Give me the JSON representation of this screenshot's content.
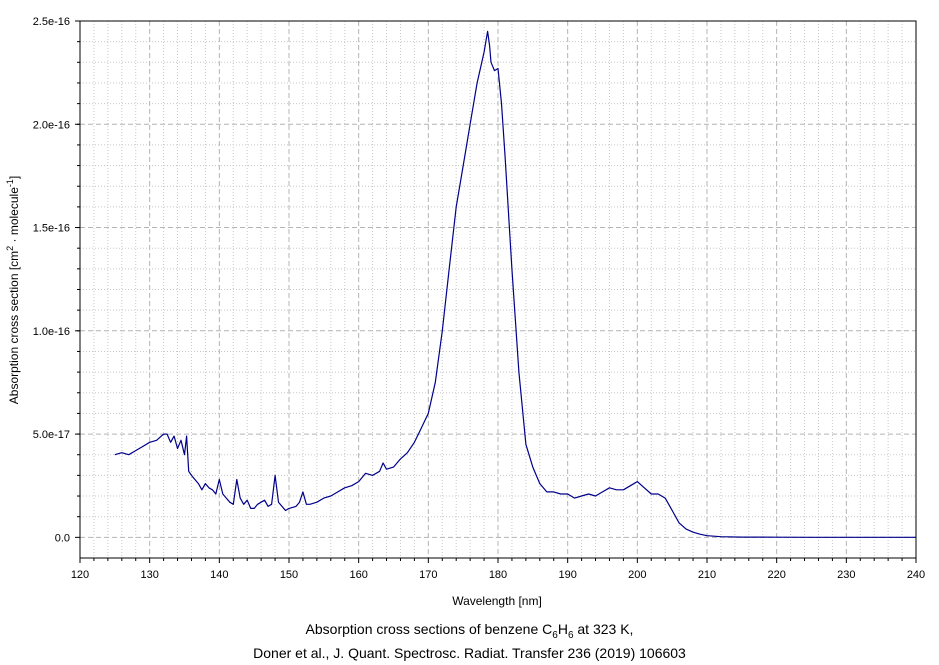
{
  "chart_data": {
    "type": "line",
    "xlabel": "Wavelength [nm]",
    "ylabel": {
      "prefix": "Absorption cross section [cm",
      "sup1": "2",
      "middle": " · molecule",
      "sup2": "-1",
      "suffix": "]"
    },
    "xlim": [
      120,
      240
    ],
    "ylim": [
      -1e-17,
      2.5e-16
    ],
    "x_ticks": [
      120,
      130,
      140,
      150,
      160,
      170,
      180,
      190,
      200,
      210,
      220,
      230,
      240
    ],
    "x_tick_labels": [
      "120",
      "130",
      "140",
      "150",
      "160",
      "170",
      "180",
      "190",
      "200",
      "210",
      "220",
      "230",
      "240"
    ],
    "y_ticks": [
      0,
      5e-17,
      1e-16,
      1.5e-16,
      2e-16,
      2.5e-16
    ],
    "y_tick_labels": [
      "0.0",
      "5.0e-17",
      "1.0e-16",
      "1.5e-16",
      "2.0e-16",
      "2.5e-16"
    ],
    "grid": true,
    "series": [
      {
        "color": "#00008b",
        "x": [
          125,
          126,
          127,
          128,
          129,
          130,
          131,
          132,
          132.5,
          133,
          133.5,
          134,
          134.5,
          135,
          135.3,
          135.6,
          136,
          136.5,
          137,
          137.5,
          138,
          138.5,
          139,
          139.5,
          140,
          140.5,
          141,
          141.5,
          142,
          142.5,
          143,
          143.5,
          144,
          144.5,
          145,
          145.5,
          146,
          146.5,
          147,
          147.5,
          148,
          148.5,
          149,
          149.5,
          150,
          151,
          151.5,
          152,
          152.5,
          153,
          154,
          155,
          156,
          157,
          158,
          159,
          160,
          161,
          162,
          163,
          163.5,
          164,
          165,
          166,
          167,
          168,
          169,
          170,
          171,
          172,
          173,
          174,
          175,
          176,
          177,
          178,
          178.5,
          178.8,
          179,
          179.5,
          180,
          180.5,
          181,
          182,
          183,
          184,
          185,
          186,
          187,
          188,
          189,
          190,
          191,
          192,
          193,
          194,
          195,
          196,
          197,
          198,
          199,
          200,
          201,
          202,
          203,
          204,
          205,
          206,
          207,
          208,
          209,
          210,
          212,
          215,
          220,
          225,
          230,
          235,
          240
        ],
        "y": [
          4e-17,
          4.1e-17,
          4e-17,
          4.2e-17,
          4.4e-17,
          4.6e-17,
          4.7e-17,
          5e-17,
          5e-17,
          4.6e-17,
          4.9e-17,
          4.3e-17,
          4.7e-17,
          4e-17,
          4.9e-17,
          3.2e-17,
          3e-17,
          2.8e-17,
          2.6e-17,
          2.3e-17,
          2.6e-17,
          2.4e-17,
          2.3e-17,
          2.1e-17,
          2.8e-17,
          2.1e-17,
          1.9e-17,
          1.7e-17,
          1.6e-17,
          2.8e-17,
          1.9e-17,
          1.6e-17,
          1.8e-17,
          1.4e-17,
          1.4e-17,
          1.6e-17,
          1.7e-17,
          1.8e-17,
          1.5e-17,
          1.6e-17,
          3e-17,
          1.7e-17,
          1.5e-17,
          1.3e-17,
          1.4e-17,
          1.5e-17,
          1.7e-17,
          2.2e-17,
          1.6e-17,
          1.6e-17,
          1.7e-17,
          1.9e-17,
          2e-17,
          2.2e-17,
          2.4e-17,
          2.5e-17,
          2.7e-17,
          3.1e-17,
          3e-17,
          3.2e-17,
          3.6e-17,
          3.3e-17,
          3.4e-17,
          3.8e-17,
          4.1e-17,
          4.6e-17,
          5.3e-17,
          6e-17,
          7.5e-17,
          1e-16,
          1.3e-16,
          1.6e-16,
          1.8e-16,
          2e-16,
          2.2e-16,
          2.35e-16,
          2.45e-16,
          2.38e-16,
          2.3e-16,
          2.26e-16,
          2.27e-16,
          2.1e-16,
          1.85e-16,
          1.3e-16,
          8e-17,
          4.5e-17,
          3.4e-17,
          2.6e-17,
          2.2e-17,
          2.2e-17,
          2.1e-17,
          2.1e-17,
          1.9e-17,
          2e-17,
          2.1e-17,
          2e-17,
          2.2e-17,
          2.4e-17,
          2.3e-17,
          2.3e-17,
          2.5e-17,
          2.7e-17,
          2.4e-17,
          2.1e-17,
          2.1e-17,
          1.9e-17,
          1.3e-17,
          7e-18,
          4e-18,
          2.5e-18,
          1.5e-18,
          8e-19,
          3e-19,
          1e-19,
          5e-20,
          3e-20,
          2e-20,
          1e-20,
          1e-20
        ]
      }
    ]
  },
  "caption": {
    "line1_before": "Absorption cross sections of benzene C",
    "sub1": "6",
    "line1_mid": "H",
    "sub2": "6",
    "line1_after": " at 323 K,",
    "line2": "Doner et al., J. Quant. Spectrosc. Radiat. Transfer 236 (2019) 106603"
  }
}
